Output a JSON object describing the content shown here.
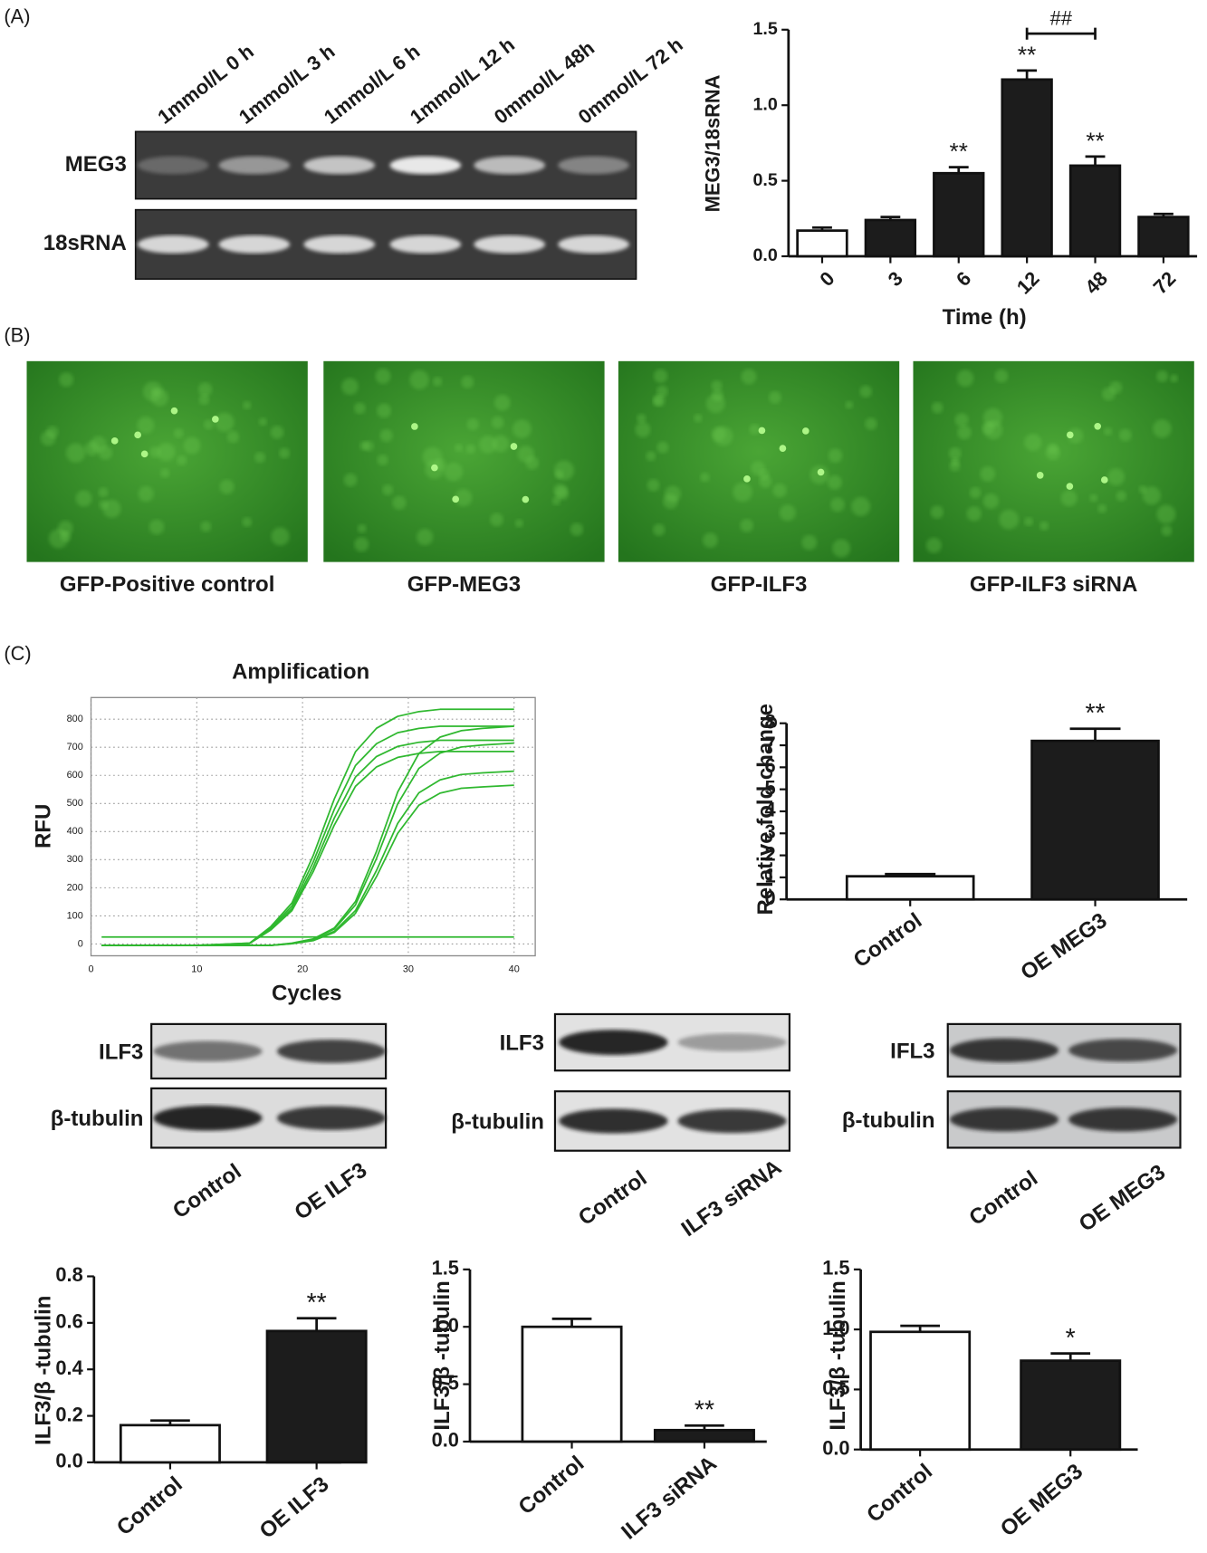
{
  "figure": {
    "panels": [
      "(A)",
      "(B)",
      "(C)"
    ],
    "gel": {
      "lanes": [
        "1mmol/L 0 h",
        "1mmol/L 3 h",
        "1mmol/L 6 h",
        "1mmol/L 12 h",
        "0mmol/L 48h",
        "0mmol/L 72 h"
      ],
      "rows": [
        "MEG3",
        "18sRNA"
      ]
    },
    "images": {
      "captions": [
        "GFP-Positive control",
        "GFP-MEG3",
        "GFP-ILF3",
        "GFP-ILF3 siRNA"
      ]
    },
    "blots": [
      {
        "rows": [
          "ILF3",
          "β-tubulin"
        ],
        "lanes": [
          "Control",
          "OE ILF3"
        ]
      },
      {
        "rows": [
          "ILF3",
          "β-tubulin"
        ],
        "lanes": [
          "Control",
          "ILF3 siRNA"
        ]
      },
      {
        "rows": [
          "IFL3",
          "β-tubulin"
        ],
        "lanes": [
          "Control",
          "OE MEG3"
        ]
      }
    ]
  },
  "chart_data": [
    {
      "type": "bar",
      "ylabel": "MEG3/18sRNA",
      "xlabel": "Time (h)",
      "categories": [
        "0",
        "3",
        "6",
        "12",
        "48",
        "72"
      ],
      "values": [
        0.17,
        0.24,
        0.55,
        1.17,
        0.6,
        0.26
      ],
      "errors": [
        0.02,
        0.02,
        0.04,
        0.06,
        0.06,
        0.02
      ],
      "colors": [
        "#ffffff",
        "#1c1c1c",
        "#1c1c1c",
        "#1c1c1c",
        "#1c1c1c",
        "#1c1c1c"
      ],
      "ylim": [
        0,
        1.5
      ],
      "yticks": [
        {
          "value": 0,
          "label": "0.0"
        },
        0.5,
        {
          "value": 1,
          "label": "1.0"
        },
        1.5
      ],
      "annotations": [
        {
          "index": 2,
          "text": "**"
        },
        {
          "index": 3,
          "text": "**"
        },
        {
          "index": 4,
          "text": "**"
        }
      ],
      "bracket": {
        "from": 3,
        "to": 4,
        "text": "##"
      }
    },
    {
      "type": "line",
      "title": "Amplification",
      "ylabel": "RFU",
      "xlabel": "Cycles",
      "x": [
        1,
        5,
        10,
        15,
        17,
        19,
        21,
        23,
        25,
        27,
        29,
        31,
        33,
        35,
        37,
        40
      ],
      "series": [
        {
          "color": "#2fb82f",
          "values": [
            -5,
            -5,
            -5,
            3,
            62,
            146,
            314,
            516,
            684,
            768,
            810,
            827,
            835,
            835,
            835,
            835
          ]
        },
        {
          "color": "#2fb82f",
          "values": [
            -5,
            -5,
            -5,
            3,
            57,
            135,
            291,
            479,
            635,
            713,
            752,
            767,
            775,
            775,
            775,
            775
          ]
        },
        {
          "color": "#2fb82f",
          "values": [
            -5,
            -5,
            -5,
            2,
            53,
            126,
            272,
            448,
            594,
            667,
            703,
            718,
            725,
            725,
            725,
            725
          ]
        },
        {
          "color": "#2fb82f",
          "values": [
            -5,
            -5,
            -5,
            2,
            50,
            119,
            257,
            423,
            561,
            630,
            664,
            678,
            685,
            685,
            685,
            685
          ]
        },
        {
          "color": "#2fb82f",
          "values": [
            -5,
            -5,
            -5,
            -5,
            -5,
            3,
            18,
            57,
            151,
            330,
            541,
            678,
            736,
            759,
            767,
            775
          ]
        },
        {
          "color": "#2fb82f",
          "values": [
            -5,
            -5,
            -5,
            -5,
            -5,
            2,
            17,
            53,
            139,
            305,
            499,
            625,
            679,
            701,
            708,
            715
          ]
        },
        {
          "color": "#2fb82f",
          "values": [
            -5,
            -5,
            -5,
            -5,
            -5,
            1,
            14,
            45,
            119,
            262,
            429,
            538,
            584,
            603,
            609,
            615
          ]
        },
        {
          "color": "#2fb82f",
          "values": [
            -5,
            -5,
            -5,
            -5,
            -5,
            1,
            12,
            41,
            109,
            240,
            394,
            494,
            537,
            554,
            559,
            565
          ]
        },
        {
          "color": "#2fb82f",
          "values": [
            25,
            25,
            25,
            25,
            25,
            25,
            25,
            25,
            25,
            25,
            25,
            25,
            25,
            25,
            25,
            25
          ]
        }
      ],
      "xlim": [
        0,
        42
      ],
      "xticks": [
        0,
        10,
        20,
        30,
        40
      ],
      "ylim": [
        -42,
        877
      ],
      "yticks": [
        0,
        100,
        200,
        300,
        400,
        500,
        600,
        700,
        800
      ],
      "grid": true
    },
    {
      "type": "bar",
      "ylabel": "Relative fold change",
      "categories": [
        "Control",
        "OE MEG3"
      ],
      "values": [
        1.05,
        7.2
      ],
      "errors": [
        0.1,
        0.55
      ],
      "colors": [
        "#ffffff",
        "#1c1c1c"
      ],
      "ylim": [
        0,
        8
      ],
      "yticks": [
        0,
        1,
        2,
        3,
        4,
        5,
        6,
        7,
        8
      ],
      "annotations": [
        {
          "index": 1,
          "text": "**"
        }
      ]
    },
    {
      "type": "bar",
      "ylabel": "ILF3/β -tubulin",
      "categories": [
        "Control",
        "OE ILF3"
      ],
      "values": [
        0.16,
        0.565
      ],
      "errors": [
        0.02,
        0.055
      ],
      "colors": [
        "#ffffff",
        "#1c1c1c"
      ],
      "ylim": [
        0,
        0.8
      ],
      "yticks": [
        {
          "value": 0,
          "label": "0.0"
        },
        0.2,
        0.4,
        0.6,
        0.8
      ],
      "annotations": [
        {
          "index": 1,
          "text": "**"
        }
      ]
    },
    {
      "type": "bar",
      "ylabel": "ILF3/β -tubulin",
      "categories": [
        "Control",
        "ILF3 siRNA"
      ],
      "values": [
        1.0,
        0.1
      ],
      "errors": [
        0.07,
        0.04
      ],
      "colors": [
        "#ffffff",
        "#1c1c1c"
      ],
      "ylim": [
        0,
        1.5
      ],
      "yticks": [
        {
          "value": 0,
          "label": "0.0"
        },
        0.5,
        {
          "value": 1,
          "label": "1.0"
        },
        1.5
      ],
      "annotations": [
        {
          "index": 1,
          "text": "**"
        }
      ]
    },
    {
      "type": "bar",
      "ylabel": "ILF3/β -tubulin",
      "categories": [
        "Control",
        "OE MEG3"
      ],
      "values": [
        0.98,
        0.74
      ],
      "errors": [
        0.05,
        0.06
      ],
      "colors": [
        "#ffffff",
        "#1c1c1c"
      ],
      "ylim": [
        0,
        1.5
      ],
      "yticks": [
        {
          "value": 0,
          "label": "0.0"
        },
        0.5,
        {
          "value": 1,
          "label": "1.0"
        },
        1.5
      ],
      "annotations": [
        {
          "index": 1,
          "text": "*"
        }
      ]
    }
  ]
}
